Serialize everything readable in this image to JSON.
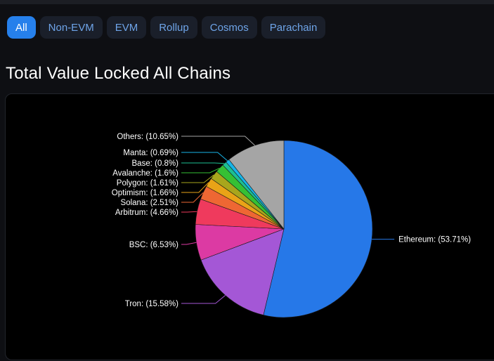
{
  "tabs": [
    {
      "label": "All",
      "active": true
    },
    {
      "label": "Non-EVM",
      "active": false
    },
    {
      "label": "EVM",
      "active": false
    },
    {
      "label": "Rollup",
      "active": false
    },
    {
      "label": "Cosmos",
      "active": false
    },
    {
      "label": "Parachain",
      "active": false
    }
  ],
  "page_title": "Total Value Locked All Chains",
  "colors": {
    "accent": "#2680eb",
    "tab_text": "#6ea4e8"
  },
  "chart_data": {
    "type": "pie",
    "title": "",
    "slices": [
      {
        "label": "Ethereum: (53.71%)",
        "name": "Ethereum",
        "value": 53.71,
        "color": "#2678e8"
      },
      {
        "label": "Tron: (15.58%)",
        "name": "Tron",
        "value": 15.58,
        "color": "#a457d6"
      },
      {
        "label": "BSC: (6.53%)",
        "name": "BSC",
        "value": 6.53,
        "color": "#dc3aa3"
      },
      {
        "label": "Arbitrum: (4.66%)",
        "name": "Arbitrum",
        "value": 4.66,
        "color": "#ef3a5d"
      },
      {
        "label": "Solana: (2.51%)",
        "name": "Solana",
        "value": 2.51,
        "color": "#ee6733"
      },
      {
        "label": "Optimism: (1.66%)",
        "name": "Optimism",
        "value": 1.66,
        "color": "#e9a317"
      },
      {
        "label": "Polygon: (1.61%)",
        "name": "Polygon",
        "value": 1.61,
        "color": "#a8a61c"
      },
      {
        "label": "Avalanche: (1.6%)",
        "name": "Avalanche",
        "value": 1.6,
        "color": "#35c034"
      },
      {
        "label": "Base: (0.8%)",
        "name": "Base",
        "value": 0.8,
        "color": "#1cbf92"
      },
      {
        "label": "Manta: (0.69%)",
        "name": "Manta",
        "value": 0.69,
        "color": "#18b4e8"
      },
      {
        "label": "Others: (10.65%)",
        "name": "Others",
        "value": 10.65,
        "color": "#a5a5a5"
      }
    ]
  }
}
